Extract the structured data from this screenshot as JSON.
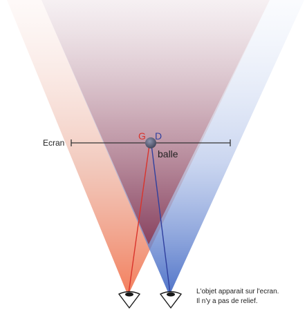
{
  "labels": {
    "screen": "Ecran",
    "left_eye": "G",
    "right_eye": "D",
    "ball": "balle",
    "caption_line1": "L'objet apparait sur l'ecran.",
    "caption_line2": "Il n'y a pas de relief."
  },
  "colors": {
    "left": "#d9332b",
    "right": "#2f3f9e",
    "ball": "#3f4357",
    "screen_line": "#333333"
  }
}
